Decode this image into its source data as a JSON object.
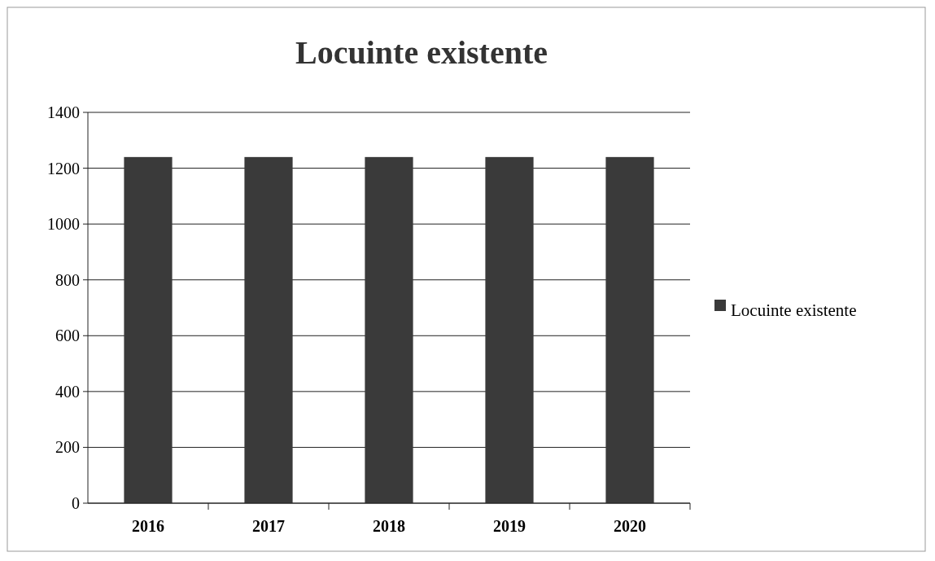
{
  "chart_data": {
    "type": "bar",
    "title": "Locuinte existente",
    "categories": [
      "2016",
      "2017",
      "2018",
      "2019",
      "2020"
    ],
    "series": [
      {
        "name": "Locuinte existente",
        "color": "#3a3a3a",
        "values": [
          1240,
          1240,
          1240,
          1240,
          1240
        ]
      }
    ],
    "ylim": [
      0,
      1400
    ],
    "yticks": [
      0,
      200,
      400,
      600,
      800,
      1000,
      1200,
      1400
    ],
    "grid": "y",
    "legend": "right"
  }
}
